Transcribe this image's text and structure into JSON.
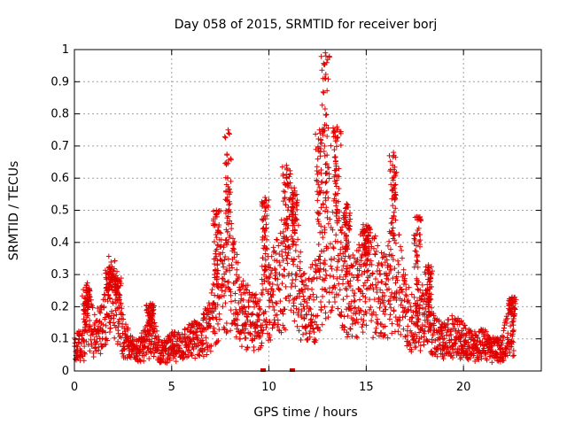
{
  "chart_data": {
    "type": "scatter",
    "title": "Day 058 of 2015, SRMTID for receiver borj",
    "xlabel": "GPS time / hours",
    "ylabel": "SRMTID / TECUs",
    "xlim": [
      0,
      24
    ],
    "ylim": [
      0,
      1
    ],
    "x_ticks": [
      0,
      5,
      10,
      15,
      20
    ],
    "x_tick_labels": [
      "0",
      "5",
      "10",
      "15",
      "20"
    ],
    "y_ticks": [
      0,
      0.1,
      0.2,
      0.3,
      0.4,
      0.5,
      0.6,
      0.7,
      0.8,
      0.9,
      1
    ],
    "y_tick_labels": [
      "0",
      "0.1",
      "0.2",
      "0.3",
      "0.4",
      "0.5",
      "0.6",
      "0.7",
      "0.8",
      "0.9",
      "1"
    ],
    "grid": true,
    "marker": "plus",
    "color": "#e00000",
    "series": [
      {
        "name": "SRMTID",
        "baseline_profile": [
          [
            0.0,
            0.08
          ],
          [
            0.5,
            0.09
          ],
          [
            0.6,
            0.2
          ],
          [
            1.0,
            0.12
          ],
          [
            1.5,
            0.15
          ],
          [
            1.8,
            0.25
          ],
          [
            2.2,
            0.22
          ],
          [
            2.5,
            0.12
          ],
          [
            3.0,
            0.07
          ],
          [
            3.5,
            0.08
          ],
          [
            4.0,
            0.12
          ],
          [
            4.5,
            0.06
          ],
          [
            5.0,
            0.08
          ],
          [
            5.5,
            0.09
          ],
          [
            6.0,
            0.1
          ],
          [
            6.5,
            0.12
          ],
          [
            7.0,
            0.15
          ],
          [
            7.3,
            0.25
          ],
          [
            7.6,
            0.3
          ],
          [
            8.0,
            0.35
          ],
          [
            8.5,
            0.2
          ],
          [
            9.0,
            0.18
          ],
          [
            9.5,
            0.15
          ],
          [
            9.8,
            0.3
          ],
          [
            10.0,
            0.22
          ],
          [
            10.5,
            0.3
          ],
          [
            11.0,
            0.35
          ],
          [
            11.3,
            0.4
          ],
          [
            11.7,
            0.25
          ],
          [
            12.0,
            0.2
          ],
          [
            12.5,
            0.25
          ],
          [
            13.0,
            0.45
          ],
          [
            13.3,
            0.5
          ],
          [
            13.6,
            0.35
          ],
          [
            14.0,
            0.3
          ],
          [
            14.3,
            0.25
          ],
          [
            14.7,
            0.3
          ],
          [
            15.0,
            0.32
          ],
          [
            15.5,
            0.28
          ],
          [
            16.0,
            0.25
          ],
          [
            16.5,
            0.35
          ],
          [
            17.0,
            0.2
          ],
          [
            17.5,
            0.15
          ],
          [
            18.0,
            0.2
          ],
          [
            18.5,
            0.12
          ],
          [
            19.0,
            0.1
          ],
          [
            19.5,
            0.12
          ],
          [
            20.0,
            0.1
          ],
          [
            20.5,
            0.08
          ],
          [
            21.0,
            0.09
          ],
          [
            21.5,
            0.07
          ],
          [
            22.0,
            0.08
          ],
          [
            22.4,
            0.15
          ],
          [
            22.6,
            0.12
          ]
        ],
        "peaks": [
          [
            0.6,
            0.26
          ],
          [
            1.8,
            0.32
          ],
          [
            2.2,
            0.29
          ],
          [
            3.9,
            0.21
          ],
          [
            7.3,
            0.5
          ],
          [
            7.9,
            0.75
          ],
          [
            9.8,
            0.54
          ],
          [
            10.9,
            0.64
          ],
          [
            11.3,
            0.57
          ],
          [
            12.6,
            0.75
          ],
          [
            12.9,
            0.99
          ],
          [
            13.5,
            0.76
          ],
          [
            14.0,
            0.52
          ],
          [
            15.0,
            0.45
          ],
          [
            16.4,
            0.68
          ],
          [
            17.6,
            0.48
          ],
          [
            18.2,
            0.33
          ],
          [
            22.5,
            0.23
          ]
        ],
        "zero_points": [
          9.7,
          11.2
        ]
      }
    ]
  }
}
